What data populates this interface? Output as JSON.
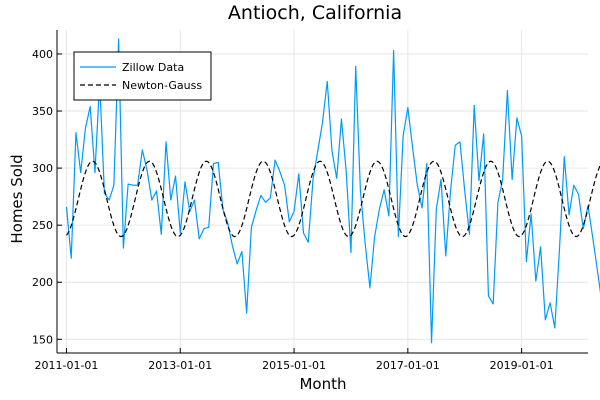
{
  "chart_data": {
    "type": "line",
    "title": "Antioch, California",
    "xlabel": "Month",
    "ylabel": "Homes Sold",
    "x_ticks": [
      "2011-01-01",
      "2013-01-01",
      "2015-01-01",
      "2017-01-01",
      "2019-01-01"
    ],
    "y_ticks": [
      "150",
      "200",
      "250",
      "300",
      "350",
      "400"
    ],
    "xlim": [
      "2010-11-01",
      "2020-03-01"
    ],
    "ylim": [
      138,
      421
    ],
    "grid": true,
    "legend_position": "top-left",
    "x_start": "2011-01-01",
    "x_step": "1 month",
    "series": [
      {
        "name": "Zillow Data",
        "color": "#009af9",
        "style": "solid",
        "values": [
          266,
          221,
          331,
          296,
          335,
          354,
          296,
          376,
          278,
          272,
          285,
          413,
          230,
          286,
          285,
          285,
          316,
          298,
          272,
          280,
          242,
          323,
          272,
          293,
          243,
          288,
          262,
          272,
          238,
          247,
          248,
          304,
          305,
          264,
          252,
          232,
          216,
          227,
          173,
          248,
          263,
          276,
          270,
          274,
          307,
          297,
          285,
          253,
          262,
          295,
          243,
          235,
          290,
          315,
          340,
          376,
          315,
          291,
          343,
          297,
          226,
          389,
          280,
          234,
          195,
          240,
          264,
          281,
          258,
          403,
          240,
          328,
          353,
          318,
          285,
          265,
          304,
          147,
          264,
          290,
          223,
          280,
          320,
          323,
          280,
          242,
          355,
          289,
          330,
          188,
          181,
          270,
          290,
          368,
          290,
          344,
          328,
          218,
          260,
          201,
          231,
          167,
          182,
          160,
          230,
          310,
          259,
          285,
          277,
          247,
          267,
          239,
          210,
          180
        ]
      },
      {
        "name": "Newton-Gauss",
        "color": "#000000",
        "style": "dashed",
        "model": "sine fit, period 12 months",
        "mean": 273,
        "amplitude": 33
      }
    ]
  }
}
